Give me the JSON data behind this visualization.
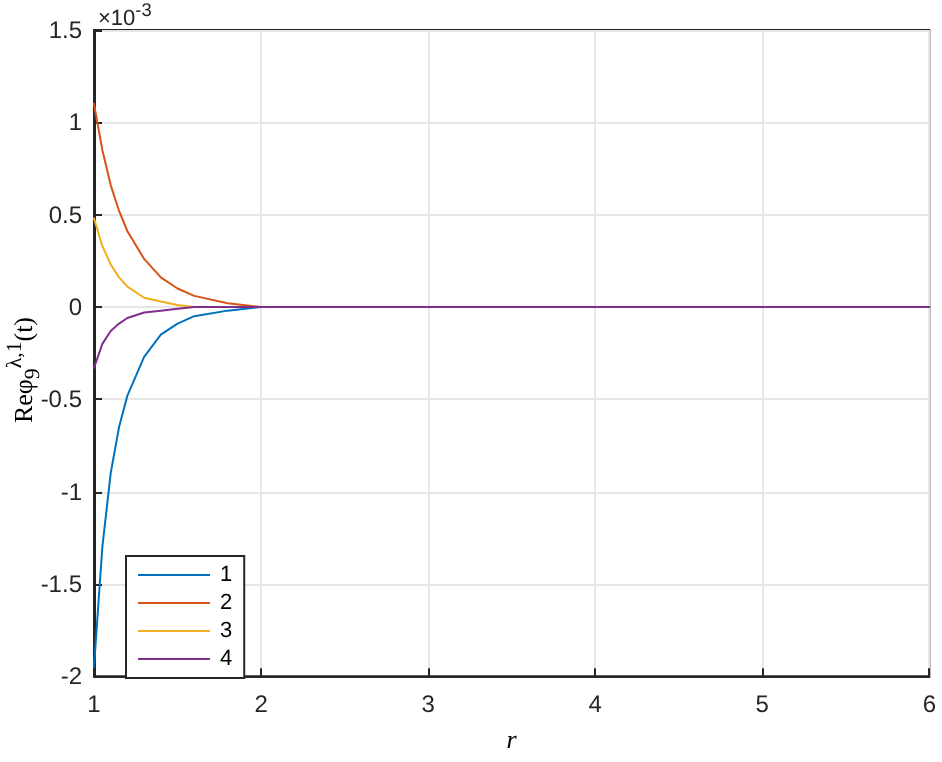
{
  "chart_data": {
    "type": "line",
    "xlabel": "r",
    "ylabel": "Reφ$_{9}$$^{λ,1}$(t)",
    "annotations": [
      "×10$^{-3}$"
    ],
    "x": [
      1,
      1.05,
      1.1,
      1.15,
      1.2,
      1.3,
      1.4,
      1.5,
      1.6,
      1.8,
      2,
      3,
      4,
      5,
      6
    ],
    "series": [
      {
        "name": "1",
        "color": "#0072bd",
        "values": [
          -1.95,
          -1.3,
          -0.9,
          -0.65,
          -0.48,
          -0.27,
          -0.15,
          -0.09,
          -0.05,
          -0.02,
          0,
          null,
          null,
          null,
          null
        ]
      },
      {
        "name": "2",
        "color": "#d95319",
        "values": [
          1.1,
          0.85,
          0.66,
          0.52,
          0.41,
          0.26,
          0.16,
          0.1,
          0.06,
          0.02,
          0,
          null,
          null,
          null,
          null
        ]
      },
      {
        "name": "3",
        "color": "#edb120",
        "values": [
          0.48,
          0.33,
          0.23,
          0.16,
          0.11,
          0.05,
          0.03,
          0.01,
          0,
          null,
          null,
          null,
          null,
          null,
          null
        ]
      },
      {
        "name": "4",
        "color": "#7e2f8e",
        "values": [
          -0.33,
          -0.2,
          -0.13,
          -0.09,
          -0.06,
          -0.03,
          -0.02,
          -0.01,
          0,
          0,
          0,
          0,
          0,
          0,
          0
        ]
      }
    ],
    "xlim": [
      1,
      6
    ],
    "xticks": [
      1,
      2,
      3,
      4,
      5,
      6
    ],
    "ylim": [
      -2,
      1.5
    ],
    "yticks": [
      -2,
      -1.5,
      -1,
      -0.5,
      0,
      0.5,
      1,
      1.5
    ],
    "grid": true,
    "legend": "bottom left",
    "marker": "none",
    "line_style": "solid"
  }
}
